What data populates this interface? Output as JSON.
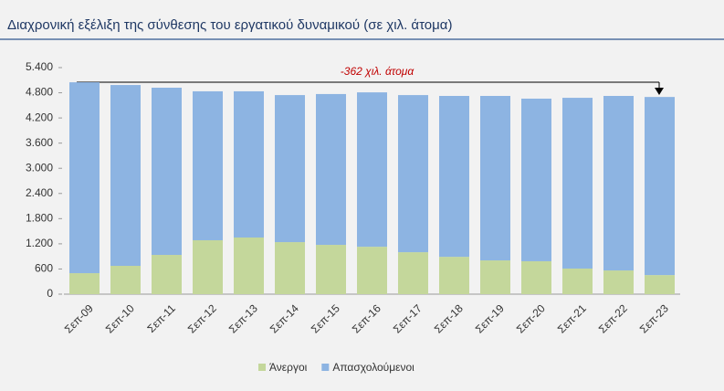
{
  "chart_data": {
    "type": "stacked-bar",
    "title": "Διαχρονική εξέλιξη της σύνθεσης του εργατικού δυναμικού (σε χιλ. άτομα)",
    "annotation": "-362 χιλ. άτομα",
    "categories": [
      "Σεπ-09",
      "Σεπ-10",
      "Σεπ-11",
      "Σεπ-12",
      "Σεπ-13",
      "Σεπ-14",
      "Σεπ-15",
      "Σεπ-16",
      "Σεπ-17",
      "Σεπ-18",
      "Σεπ-19",
      "Σεπ-20",
      "Σεπ-21",
      "Σεπ-22",
      "Σεπ-23"
    ],
    "series": [
      {
        "name": "Άνεργοι",
        "color": "#c4d79b",
        "values": [
          500,
          675,
          936,
          1285,
          1350,
          1240,
          1175,
          1130,
          1000,
          890,
          805,
          785,
          610,
          565,
          455
        ]
      },
      {
        "name": "Απασχολούμενοι",
        "color": "#8db4e2",
        "values": [
          4550,
          4310,
          3985,
          3550,
          3485,
          3505,
          3595,
          3680,
          3745,
          3835,
          3920,
          3875,
          4070,
          4160,
          4245
        ]
      }
    ],
    "ylim": [
      0,
      5400
    ],
    "yticks": [
      0,
      600,
      {
        "value": 1200,
        "label": "1.200"
      },
      {
        "value": 1800,
        "label": "1.800"
      },
      {
        "value": 2400,
        "label": "2.400"
      },
      {
        "value": 3000,
        "label": "3.000"
      },
      {
        "value": 3600,
        "label": "3.600"
      },
      {
        "value": 4200,
        "label": "4.200"
      },
      {
        "value": 4800,
        "label": "4.800"
      },
      {
        "value": 5400,
        "label": "5.400"
      }
    ],
    "legend": "bottom"
  }
}
